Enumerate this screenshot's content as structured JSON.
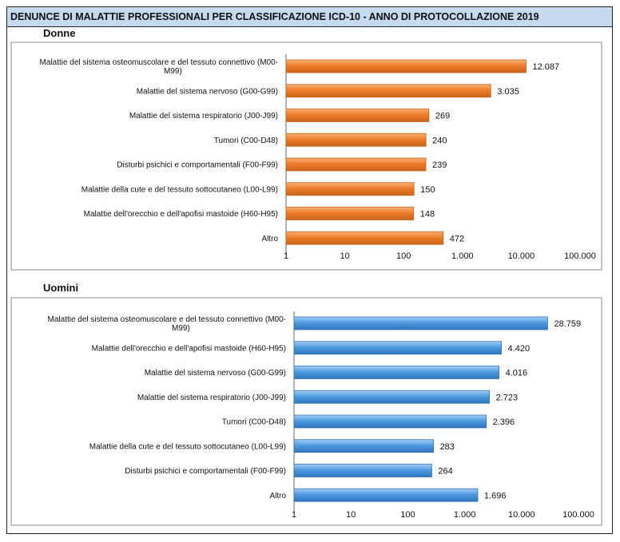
{
  "title": "DENUNCE DI MALATTIE PROFESSIONALI PER CLASSIFICAZIONE ICD-10  - ANNO DI PROTOCOLLAZIONE 2019",
  "colors": {
    "donne_bar": "#ee7d2a",
    "donne_bar_light": "#f9b078",
    "donne_bar_dark": "#c8631a",
    "uomini_bar": "#4f9be3",
    "uomini_bar_light": "#a6cdf3",
    "uomini_bar_dark": "#2f75bb",
    "title_background": "#c5d9ef"
  },
  "chart_data": [
    {
      "type": "bar",
      "orientation": "horizontal",
      "title": "Donne",
      "x_scale": "log",
      "xlim": [
        1,
        100000
      ],
      "x_ticks": [
        "1",
        "10",
        "100",
        "1.000",
        "10.000",
        "100.000"
      ],
      "grid": false,
      "categories": [
        "Malattie del sistema osteomuscolare e del tessuto connettivo (M00-M99)",
        "Malattie del sistema nervoso (G00-G99)",
        "Malattie del sistema respiratorio (J00-J99)",
        "Tumori (C00-D48)",
        "Disturbi psichici e comportamentali (F00-F99)",
        "Malattie della cute e del tessuto sottocutaneo (L00-L99)",
        "Malattie dell'orecchio e dell'apofisi mastoide (H60-H95)",
        "Altro"
      ],
      "values": [
        12087,
        3035,
        269,
        240,
        239,
        150,
        148,
        472
      ],
      "value_labels": [
        "12.087",
        "3.035",
        "269",
        "240",
        "239",
        "150",
        "148",
        "472"
      ]
    },
    {
      "type": "bar",
      "orientation": "horizontal",
      "title": "Uomini",
      "x_scale": "log",
      "xlim": [
        1,
        100000
      ],
      "x_ticks": [
        "1",
        "10",
        "100",
        "1.000",
        "10.000",
        "100.000"
      ],
      "grid": false,
      "categories": [
        "Malattie del sistema osteomuscolare e del tessuto connettivo (M00-M99)",
        "Malattie dell'orecchio e dell'apofisi mastoide (H60-H95)",
        "Malattie del sistema nervoso (G00-G99)",
        "Malattie del sistema respiratorio (J00-J99)",
        "Tumori (C00-D48)",
        "Malattie della cute e del tessuto sottocutaneo (L00-L99)",
        "Disturbi psichici e comportamentali (F00-F99)",
        "Altro"
      ],
      "values": [
        28759,
        4420,
        4016,
        2723,
        2396,
        283,
        264,
        1696
      ],
      "value_labels": [
        "28.759",
        "4.420",
        "4.016",
        "2.723",
        "2.396",
        "283",
        "264",
        "1.696"
      ]
    }
  ]
}
